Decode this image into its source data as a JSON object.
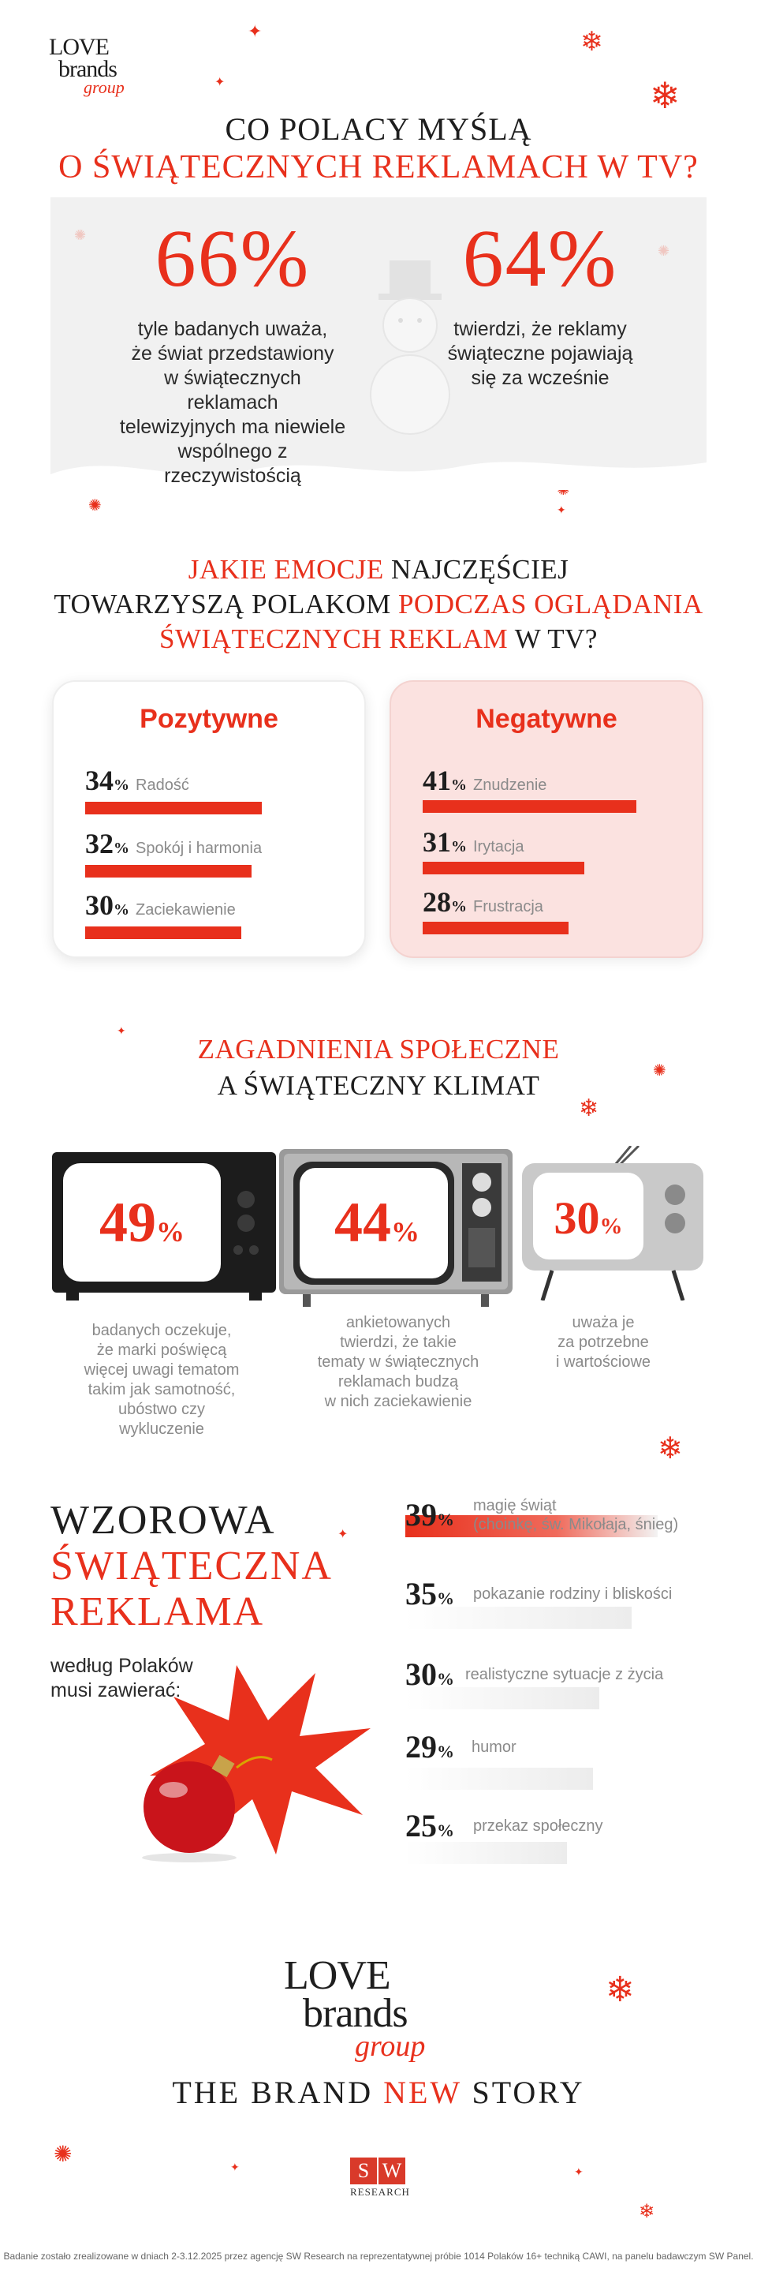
{
  "logo": {
    "line1": "LOVE",
    "line2": "brands",
    "line3": "group"
  },
  "title": {
    "line1": "CO POLACY MYŚLĄ",
    "line2": "O ŚWIĄTECZNYCH REKLAMACH W TV?"
  },
  "hero": [
    {
      "pct": "66%",
      "desc": [
        "tyle badanych uważa,",
        "że świat przedstawiony",
        "w świątecznych reklamach",
        "telewizyjnych ma niewiele",
        "wspólnego z rzeczywistością"
      ]
    },
    {
      "pct": "64%",
      "desc": [
        "twierdzi, że reklamy",
        "świąteczne pojawiają",
        "się za wcześnie"
      ]
    }
  ],
  "emotions_heading": {
    "l1a": "JAKIE EMOCJE",
    "l1b": " NAJCZĘŚCIEJ",
    "l2a": "TOWARZYSZĄ POLAKOM ",
    "l2b": "PODCZAS OGLĄDANIA",
    "l3a": "ŚWIĄTECZNYCH REKLAM",
    "l3b": " W TV?"
  },
  "positive": {
    "title": "Pozytywne",
    "items": [
      {
        "num": "34",
        "sign": "%",
        "label": "Radość",
        "value": 34
      },
      {
        "num": "32",
        "sign": "%",
        "label": "Spokój i harmonia",
        "value": 32
      },
      {
        "num": "30",
        "sign": "%",
        "label": "Zaciekawienie",
        "value": 30
      }
    ]
  },
  "negative": {
    "title": "Negatywne",
    "items": [
      {
        "num": "41",
        "sign": "%",
        "label": "Znudzenie",
        "value": 41
      },
      {
        "num": "31",
        "sign": "%",
        "label": "Irytacja",
        "value": 31
      },
      {
        "num": "28",
        "sign": "%",
        "label": "Frustracja",
        "value": 28
      }
    ]
  },
  "social": {
    "heading1": "ZAGADNIENIA SPOŁECZNE",
    "heading2": "A ŚWIĄTECZNY KLIMAT",
    "tvs": [
      {
        "num": "49",
        "sign": "%",
        "desc": [
          "badanych oczekuje,",
          "że marki poświęcą",
          "więcej uwagi tematom",
          "takim jak samotność,",
          "ubóstwo czy",
          "wykluczenie"
        ]
      },
      {
        "num": "44",
        "sign": "%",
        "desc": [
          "ankietowanych",
          "twierdzi, że takie",
          "tematy w świątecznych",
          "reklamach budzą",
          "w nich zaciekawienie"
        ]
      },
      {
        "num": "30",
        "sign": "%",
        "desc": [
          "uważa je",
          "za potrzebne",
          "i wartościowe"
        ]
      }
    ]
  },
  "ideal": {
    "title": [
      "WZOROWA",
      "ŚWIĄTECZNA",
      "REKLAMA"
    ],
    "sub": [
      "według Polaków",
      "musi zawierać:"
    ],
    "items": [
      {
        "num": "39",
        "sign": "%",
        "label": [
          "magię świąt",
          "(choinkę, św. Mikołaja, śnieg)"
        ],
        "value": 39
      },
      {
        "num": "35",
        "sign": "%",
        "label": [
          "pokazanie rodziny i bliskości"
        ],
        "value": 35
      },
      {
        "num": "30",
        "sign": "%",
        "label": [
          "realistyczne sytuacje z życia"
        ],
        "value": 30
      },
      {
        "num": "29",
        "sign": "%",
        "label": [
          "humor"
        ],
        "value": 29
      },
      {
        "num": "25",
        "sign": "%",
        "label": [
          "przekaz społeczny"
        ],
        "value": 25
      }
    ]
  },
  "footer": {
    "tagline_a": "THE BRAND ",
    "tagline_b": "NEW",
    "tagline_c": " STORY",
    "sw_s": "S",
    "sw_w": "W",
    "sw_text": "RESEARCH",
    "note": "Badanie zostało zrealizowane w dniach 2-3.12.2025 przez agencję SW Research na reprezentatywnej próbie 1014 Polaków 16+ techniką CAWI, na panelu badawczym SW Panel."
  },
  "colors": {
    "accent": "#e8301c",
    "negative_card": "#fbe2e0",
    "band": "#f1f1f1"
  }
}
